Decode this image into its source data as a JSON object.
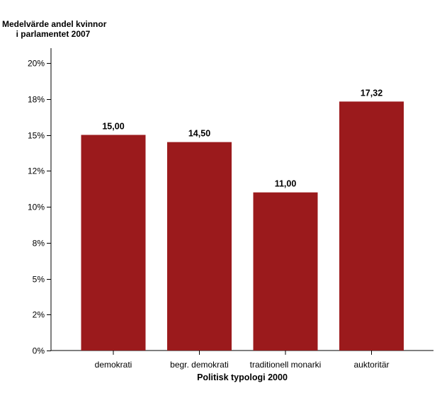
{
  "chart_data": {
    "type": "bar",
    "ylabel_lines": [
      "Medelvärde andel kvinnor",
      "i parlamentet 2007"
    ],
    "xlabel": "Politisk typologi 2000",
    "categories": [
      "demokrati",
      "begr. demokrati",
      "traditionell monarki",
      "auktoritär"
    ],
    "values": [
      15.0,
      14.5,
      11.0,
      17.32
    ],
    "data_labels": [
      "15,00",
      "14,50",
      "11,00",
      "17,32"
    ],
    "ylim": [
      0,
      20
    ],
    "yticks": [
      0,
      2.5,
      5,
      7.5,
      10,
      12.5,
      15,
      17.5,
      20
    ],
    "ytick_labels": [
      "0%",
      "2%",
      "5%",
      "8%",
      "10%",
      "12%",
      "15%",
      "18%",
      "20%"
    ],
    "bar_color": "#9b1a1c",
    "grid": false,
    "legend": "none"
  }
}
